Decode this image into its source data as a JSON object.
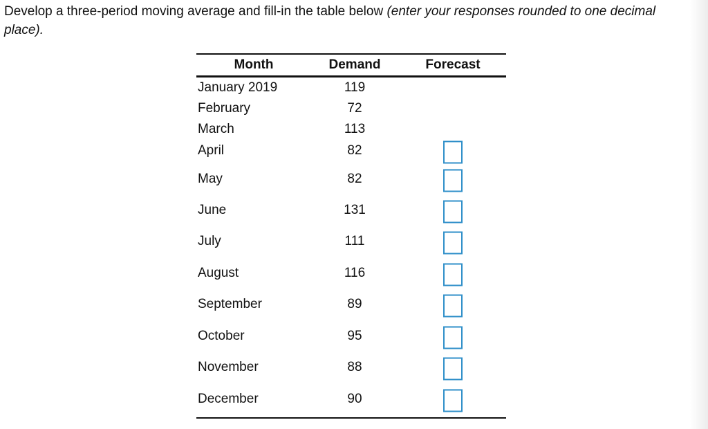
{
  "instruction": {
    "text": "Develop a three-period moving average and fill-in the table below",
    "note": "(enter your responses rounded to one decimal place)."
  },
  "table": {
    "headers": [
      "Month",
      "Demand",
      "Forecast"
    ],
    "rows": [
      [
        "January 2019",
        119
      ],
      [
        "February",
        72
      ],
      [
        "March",
        113
      ],
      [
        "April",
        82
      ],
      [
        "May",
        82
      ],
      [
        "June",
        131
      ],
      [
        "July",
        111
      ],
      [
        "August",
        116
      ],
      [
        "September",
        89
      ],
      [
        "October",
        95
      ],
      [
        "November",
        88
      ],
      [
        "December",
        90
      ]
    ]
  }
}
